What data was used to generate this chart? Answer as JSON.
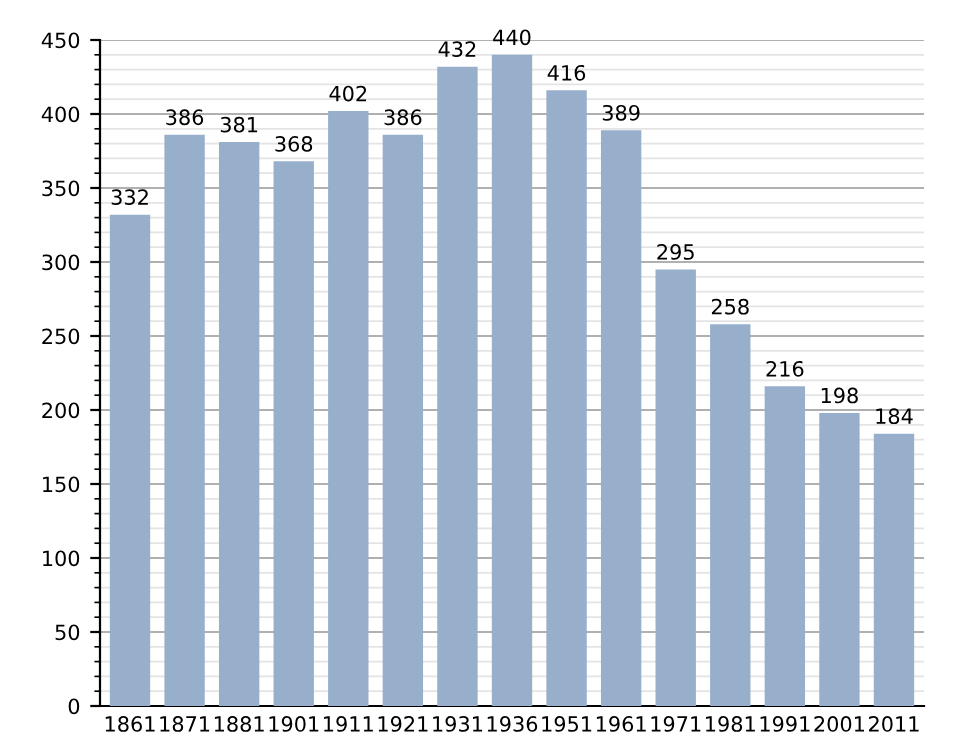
{
  "chart_data": {
    "type": "bar",
    "categories": [
      "1861",
      "1871",
      "1881",
      "1901",
      "1911",
      "1921",
      "1931",
      "1936",
      "1951",
      "1961",
      "1971",
      "1981",
      "1991",
      "2001",
      "2011"
    ],
    "values": [
      332,
      386,
      381,
      368,
      402,
      386,
      432,
      440,
      416,
      389,
      295,
      258,
      216,
      198,
      184
    ],
    "color": "#97afcb",
    "data_labels": true,
    "grid": "y",
    "ylim": [
      0,
      450
    ],
    "yticks": [
      0,
      50,
      100,
      150,
      200,
      250,
      300,
      350,
      400,
      450
    ]
  }
}
